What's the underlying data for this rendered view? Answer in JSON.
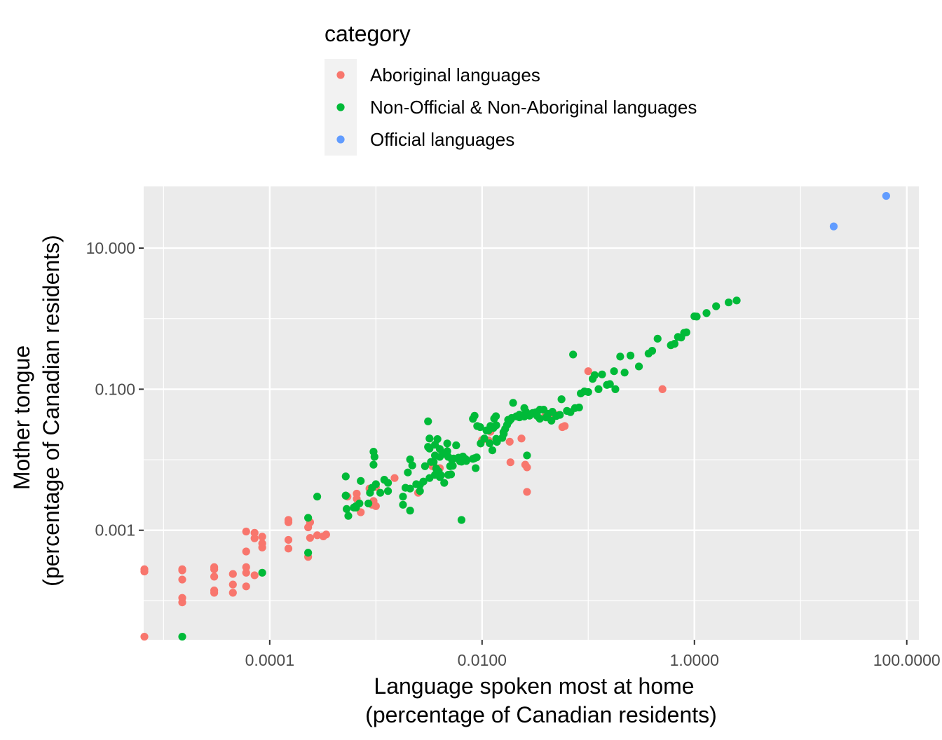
{
  "chart_data": {
    "type": "scatter",
    "x_scale": "log10",
    "y_scale": "log10",
    "xlim": [
      6.5e-06,
      130
    ],
    "ylim": [
      2.8e-05,
      75
    ],
    "x_ticks": [
      {
        "value": 0.0001,
        "label": "0.0001"
      },
      {
        "value": 0.01,
        "label": "0.0100"
      },
      {
        "value": 1,
        "label": "1.0000"
      },
      {
        "value": 100,
        "label": "100.0000"
      }
    ],
    "y_ticks": [
      {
        "value": 0.001,
        "label": "0.001"
      },
      {
        "value": 0.1,
        "label": "0.100"
      },
      {
        "value": 10,
        "label": "10.000"
      }
    ],
    "xlabel": [
      "Language spoken most at home",
      "(percentage of Canadian residents)"
    ],
    "ylabel": [
      "Mother tongue",
      "(percentage of Canadian residents)"
    ],
    "grid": true,
    "legend": {
      "title": "category",
      "placement": "top",
      "entries": [
        {
          "name": "Aboriginal languages",
          "color": "#F8766D"
        },
        {
          "name": "Non-Official & Non-Aboriginal languages",
          "color": "#00BA38"
        },
        {
          "name": "Official languages",
          "color": "#619CFF"
        }
      ]
    },
    "series": [
      {
        "name": "Aboriginal languages",
        "color": "#F8766D",
        "points": [
          [
            6.6e-06,
            0.00028
          ],
          [
            6.6e-06,
            0.00026
          ],
          [
            6.6e-06,
            3.1e-05
          ],
          [
            1.5e-05,
            0.00028
          ],
          [
            1.5e-05,
            0.00027
          ],
          [
            1.5e-05,
            0.0002
          ],
          [
            1.5e-05,
            0.00011
          ],
          [
            1.5e-05,
            9.5e-05
          ],
          [
            3e-05,
            0.0003
          ],
          [
            3e-05,
            0.00028
          ],
          [
            3e-05,
            0.00022
          ],
          [
            3e-05,
            0.00014
          ],
          [
            3e-05,
            0.00013
          ],
          [
            4.5e-05,
            0.00024
          ],
          [
            4.5e-05,
            0.00017
          ],
          [
            4.5e-05,
            0.00013
          ],
          [
            6e-05,
            0.00096
          ],
          [
            6e-05,
            0.0005
          ],
          [
            6e-05,
            0.0003
          ],
          [
            6e-05,
            0.00025
          ],
          [
            6e-05,
            0.00016
          ],
          [
            7.2e-05,
            0.00092
          ],
          [
            7.2e-05,
            0.00077
          ],
          [
            7.2e-05,
            0.00023
          ],
          [
            8.5e-05,
            0.00081
          ],
          [
            8.5e-05,
            0.00065
          ],
          [
            8.5e-05,
            0.00057
          ],
          [
            0.00015,
            0.0014
          ],
          [
            0.00015,
            0.0013
          ],
          [
            0.00015,
            0.00073
          ],
          [
            0.00015,
            0.00055
          ],
          [
            0.00023,
            0.00042
          ],
          [
            0.00023,
            0.0011
          ],
          [
            0.00024,
            0.0013
          ],
          [
            0.00024,
            0.00078
          ],
          [
            0.00028,
            0.00085
          ],
          [
            0.00032,
            0.00082
          ],
          [
            0.00034,
            0.00087
          ],
          [
            0.00054,
            0.003
          ],
          [
            0.00066,
            0.0033
          ],
          [
            0.00066,
            0.0028
          ],
          [
            0.00072,
            0.0018
          ],
          [
            0.00087,
            0.0039
          ],
          [
            0.00092,
            0.0023
          ],
          [
            0.00095,
            0.0026
          ],
          [
            0.001,
            0.0041
          ],
          [
            0.001,
            0.0022
          ],
          [
            0.0015,
            0.0055
          ],
          [
            0.0025,
            0.0034
          ],
          [
            0.0034,
            0.0081
          ],
          [
            0.0035,
            0.0083
          ],
          [
            0.004,
            0.0076
          ],
          [
            0.01,
            0.019
          ],
          [
            0.0115,
            0.0188
          ],
          [
            0.012,
            0.025
          ],
          [
            0.0182,
            0.018
          ],
          [
            0.0185,
            0.0092
          ],
          [
            0.0235,
            0.02
          ],
          [
            0.0255,
            0.0085
          ],
          [
            0.0265,
            0.0035
          ],
          [
            0.0265,
            0.0078
          ],
          [
            0.039,
            0.041
          ],
          [
            0.046,
            0.044
          ],
          [
            0.052,
            0.043
          ],
          [
            0.06,
            0.03
          ],
          [
            0.057,
            0.029
          ],
          [
            0.1,
            0.18
          ],
          [
            0.5,
            0.1
          ]
        ]
      },
      {
        "name": "Non-Official & Non-Aboriginal languages",
        "color": "#00BA38",
        "points": [
          [
            1.5e-05,
            3.1e-05
          ],
          [
            8.5e-05,
            0.00025
          ],
          [
            0.00023,
            0.0015
          ],
          [
            0.00023,
            0.00048
          ],
          [
            0.00028,
            0.003
          ],
          [
            0.00055,
            0.0016
          ],
          [
            0.00052,
            0.0058
          ],
          [
            0.00052,
            0.0031
          ],
          [
            0.00053,
            0.002
          ],
          [
            0.00052,
            0.0031
          ],
          [
            0.00065,
            0.0021
          ],
          [
            0.00062,
            0.0021
          ],
          [
            0.00065,
            0.0022
          ],
          [
            0.0007,
            0.0024
          ],
          [
            0.00072,
            0.005
          ],
          [
            0.00088,
            0.0034
          ],
          [
            0.00092,
            0.004
          ],
          [
            0.00085,
            0.0024
          ],
          [
            0.00095,
            0.013
          ],
          [
            0.00097,
            0.011
          ],
          [
            0.00095,
            0.0085
          ],
          [
            0.001,
            0.0045
          ],
          [
            0.0011,
            0.0034
          ],
          [
            0.0012,
            0.0052
          ],
          [
            0.0013,
            0.0047
          ],
          [
            0.0013,
            0.0036
          ],
          [
            0.0018,
            0.003
          ],
          [
            0.0018,
            0.0023
          ],
          [
            0.0019,
            0.004
          ],
          [
            0.0021,
            0.0039
          ],
          [
            0.0021,
            0.0019
          ],
          [
            0.002,
            0.0066
          ],
          [
            0.0021,
            0.0101
          ],
          [
            0.0022,
            0.0083
          ],
          [
            0.0024,
            0.0045
          ],
          [
            0.0026,
            0.0036
          ],
          [
            0.0026,
            0.0044
          ],
          [
            0.0028,
            0.0049
          ],
          [
            0.0029,
            0.0081
          ],
          [
            0.0032,
            0.0055
          ],
          [
            0.0031,
            0.035
          ],
          [
            0.0032,
            0.02
          ],
          [
            0.0032,
            0.0144
          ],
          [
            0.0031,
            0.0152
          ],
          [
            0.0033,
            0.0093
          ],
          [
            0.0036,
            0.0163
          ],
          [
            0.0036,
            0.0115
          ],
          [
            0.0038,
            0.0196
          ],
          [
            0.0039,
            0.0068
          ],
          [
            0.004,
            0.0142
          ],
          [
            0.004,
            0.0057
          ],
          [
            0.0037,
            0.0075
          ],
          [
            0.0041,
            0.006
          ],
          [
            0.0044,
            0.0047
          ],
          [
            0.0035,
            0.0093
          ],
          [
            0.0036,
            0.0061
          ],
          [
            0.0038,
            0.0066
          ],
          [
            0.004,
            0.011
          ],
          [
            0.0043,
            0.0121
          ],
          [
            0.0047,
            0.017
          ],
          [
            0.0047,
            0.0132
          ],
          [
            0.0048,
            0.011
          ],
          [
            0.0048,
            0.0061
          ],
          [
            0.005,
            0.0081
          ],
          [
            0.0051,
            0.0062
          ],
          [
            0.0052,
            0.0101
          ],
          [
            0.0053,
            0.0082
          ],
          [
            0.0054,
            0.0104
          ],
          [
            0.0057,
            0.016
          ],
          [
            0.006,
            0.0107
          ],
          [
            0.0062,
            0.0095
          ],
          [
            0.0064,
            0.0094
          ],
          [
            0.0066,
            0.0111
          ],
          [
            0.0066,
            0.0098
          ],
          [
            0.007,
            0.0102
          ],
          [
            0.0071,
            0.0096
          ],
          [
            0.0064,
            0.0014
          ],
          [
            0.0082,
            0.0103
          ],
          [
            0.0085,
            0.0105
          ],
          [
            0.0089,
            0.0108
          ],
          [
            0.0087,
            0.0076
          ],
          [
            0.009,
            0.03
          ],
          [
            0.0082,
            0.038
          ],
          [
            0.0085,
            0.042
          ],
          [
            0.0096,
            0.029
          ],
          [
            0.0097,
            0.017
          ],
          [
            0.0105,
            0.02
          ],
          [
            0.011,
            0.026
          ],
          [
            0.0115,
            0.026
          ],
          [
            0.012,
            0.0301
          ],
          [
            0.0118,
            0.0171
          ],
          [
            0.0125,
            0.0136
          ],
          [
            0.0128,
            0.0282
          ],
          [
            0.013,
            0.0383
          ],
          [
            0.0135,
            0.0414
          ],
          [
            0.0136,
            0.0308
          ],
          [
            0.0136,
            0.0198
          ],
          [
            0.0138,
            0.0179
          ],
          [
            0.0155,
            0.0204
          ],
          [
            0.0159,
            0.0245
          ],
          [
            0.016,
            0.0233
          ],
          [
            0.0165,
            0.0273
          ],
          [
            0.0172,
            0.0312
          ],
          [
            0.0176,
            0.0368
          ],
          [
            0.018,
            0.0352
          ],
          [
            0.0186,
            0.0373
          ],
          [
            0.019,
            0.0391
          ],
          [
            0.0196,
            0.064
          ],
          [
            0.021,
            0.0412
          ],
          [
            0.0225,
            0.0436
          ],
          [
            0.0225,
            0.0399
          ],
          [
            0.025,
            0.054
          ],
          [
            0.025,
            0.041
          ],
          [
            0.026,
            0.0474
          ],
          [
            0.0265,
            0.0115
          ],
          [
            0.028,
            0.0421
          ],
          [
            0.03,
            0.046
          ],
          [
            0.032,
            0.047
          ],
          [
            0.033,
            0.0418
          ],
          [
            0.035,
            0.0381
          ],
          [
            0.035,
            0.0512
          ],
          [
            0.038,
            0.0512
          ],
          [
            0.04,
            0.0398
          ],
          [
            0.042,
            0.0448
          ],
          [
            0.045,
            0.0358
          ],
          [
            0.046,
            0.0478
          ],
          [
            0.05,
            0.0417
          ],
          [
            0.054,
            0.0432
          ],
          [
            0.056,
            0.072
          ],
          [
            0.063,
            0.0492
          ],
          [
            0.068,
            0.0473
          ],
          [
            0.072,
            0.31
          ],
          [
            0.075,
            0.054
          ],
          [
            0.082,
            0.055
          ],
          [
            0.085,
            0.087
          ],
          [
            0.092,
            0.093
          ],
          [
            0.1,
            0.0912
          ],
          [
            0.11,
            0.14
          ],
          [
            0.115,
            0.158
          ],
          [
            0.125,
            0.1
          ],
          [
            0.135,
            0.162
          ],
          [
            0.15,
            0.115
          ],
          [
            0.16,
            0.118
          ],
          [
            0.175,
            0.18
          ],
          [
            0.18,
            0.1
          ],
          [
            0.2,
            0.29
          ],
          [
            0.22,
            0.172
          ],
          [
            0.25,
            0.3
          ],
          [
            0.3,
            0.21
          ],
          [
            0.37,
            0.32
          ],
          [
            0.4,
            0.35
          ],
          [
            0.45,
            0.52
          ],
          [
            0.6,
            0.42
          ],
          [
            0.65,
            0.44
          ],
          [
            0.7,
            0.55
          ],
          [
            0.75,
            0.54
          ],
          [
            0.8,
            0.63
          ],
          [
            0.84,
            0.64
          ],
          [
            1.0,
            1.08
          ],
          [
            1.05,
            1.07
          ],
          [
            1.3,
            1.2
          ],
          [
            1.6,
            1.5
          ],
          [
            2.1,
            1.7
          ],
          [
            2.5,
            1.81
          ]
        ]
      },
      {
        "name": "Official languages",
        "color": "#619CFF",
        "points": [
          [
            20.5,
            20.3
          ],
          [
            64,
            55
          ]
        ]
      }
    ]
  }
}
